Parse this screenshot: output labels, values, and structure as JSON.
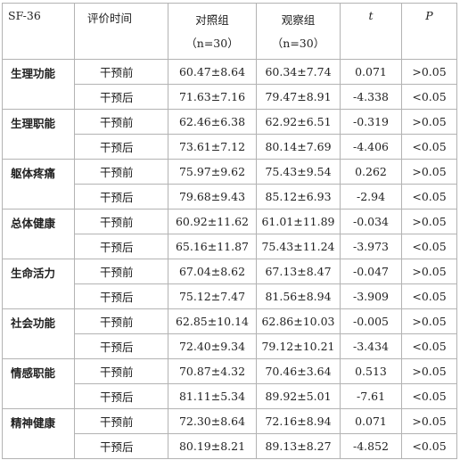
{
  "header": {
    "sf36": "SF-36",
    "eval_time": "评价时间",
    "control_name": "对照组",
    "control_n": "（n=30）",
    "observe_name": "观察组",
    "observe_n": "（n=30）",
    "t": "t",
    "p": "P"
  },
  "rows": [
    {
      "dimension": "生理功能",
      "before": {
        "time": "干预前",
        "control": "60.47±8.64",
        "observe": "60.34±7.74",
        "t": "0.071",
        "p": ">0.05"
      },
      "after": {
        "time": "干预后",
        "control": "71.63±7.16",
        "observe": "79.47±8.91",
        "t": "-4.338",
        "p": "<0.05"
      }
    },
    {
      "dimension": "生理职能",
      "before": {
        "time": "干预前",
        "control": "62.46±6.38",
        "observe": "62.92±6.51",
        "t": "-0.319",
        "p": ">0.05"
      },
      "after": {
        "time": "干预后",
        "control": "73.61±7.12",
        "observe": "80.14±7.69",
        "t": "-4.406",
        "p": "<0.05"
      }
    },
    {
      "dimension": "躯体疼痛",
      "before": {
        "time": "干预前",
        "control": "75.97±9.62",
        "observe": "75.43±9.54",
        "t": "0.262",
        "p": ">0.05"
      },
      "after": {
        "time": "干预后",
        "control": "79.68±9.43",
        "observe": "85.12±6.93",
        "t": "-2.94",
        "p": "<0.05"
      }
    },
    {
      "dimension": "总体健康",
      "before": {
        "time": "干预前",
        "control": "60.92±11.62",
        "observe": "61.01±11.89",
        "t": "-0.034",
        "p": ">0.05"
      },
      "after": {
        "time": "干预后",
        "control": "65.16±11.87",
        "observe": "75.43±11.24",
        "t": "-3.973",
        "p": "<0.05"
      }
    },
    {
      "dimension": "生命活力",
      "before": {
        "time": "干预前",
        "control": "67.04±8.62",
        "observe": "67.13±8.47",
        "t": "-0.047",
        "p": ">0.05"
      },
      "after": {
        "time": "干预后",
        "control": "75.12±7.47",
        "observe": "81.56±8.94",
        "t": "-3.909",
        "p": "<0.05"
      }
    },
    {
      "dimension": "社会功能",
      "before": {
        "time": "干预前",
        "control": "62.85±10.14",
        "observe": "62.86±10.03",
        "t": "-0.005",
        "p": ">0.05"
      },
      "after": {
        "time": "干预后",
        "control": "72.40±9.34",
        "observe": "79.12±10.21",
        "t": "-3.434",
        "p": "<0.05"
      }
    },
    {
      "dimension": "情感职能",
      "before": {
        "time": "干预前",
        "control": "70.87±4.32",
        "observe": "70.46±3.64",
        "t": "0.513",
        "p": ">0.05"
      },
      "after": {
        "time": "干预后",
        "control": "81.11±5.34",
        "observe": "89.92±5.01",
        "t": "-7.61",
        "p": "<0.05"
      }
    },
    {
      "dimension": "精神健康",
      "before": {
        "time": "干预前",
        "control": "72.30±8.64",
        "observe": "72.16±8.94",
        "t": "0.071",
        "p": ">0.05"
      },
      "after": {
        "time": "干预后",
        "control": "80.19±8.21",
        "observe": "89.13±8.27",
        "t": "-4.852",
        "p": "<0.05"
      }
    }
  ]
}
